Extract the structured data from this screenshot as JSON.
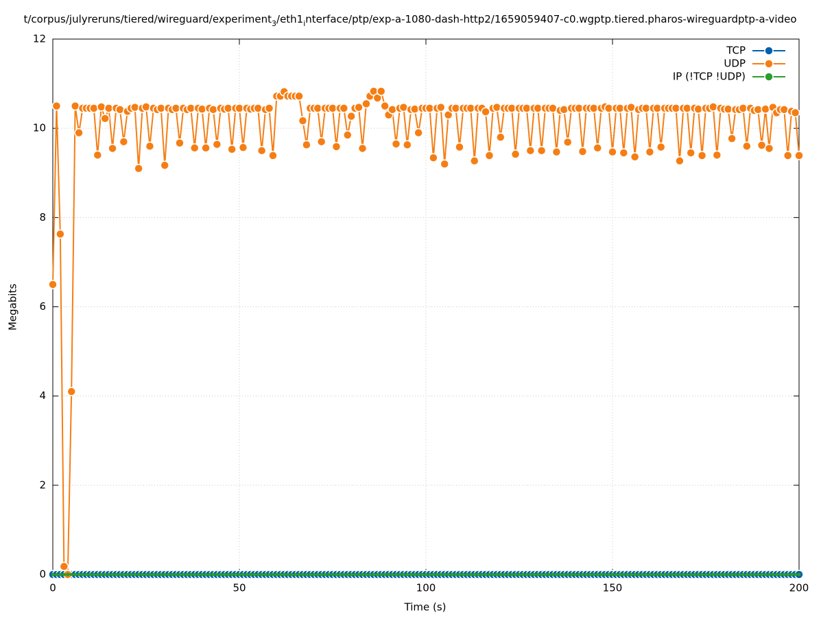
{
  "chart_data": {
    "type": "line",
    "title": [
      {
        "text": "t/corpus/julyreruns/tiered/wireguard/experiment"
      },
      {
        "text": "3",
        "sub": true
      },
      {
        "text": "/eth1"
      },
      {
        "text": "i",
        "sub": true
      },
      {
        "text": "nterface/ptp/exp-a-1080-dash-http2/1659059407-c0.wgptp.tiered.pharos-wireguardptp-a-video"
      }
    ],
    "xlabel": "Time (s)",
    "ylabel": "Megabits",
    "xlim": [
      0,
      200
    ],
    "ylim": [
      0,
      12
    ],
    "xticks": [
      0,
      50,
      100,
      150,
      200
    ],
    "yticks": [
      0,
      2,
      4,
      6,
      8,
      10,
      12
    ],
    "grid": true,
    "legend": "top-right",
    "x": [
      0,
      1,
      2,
      3,
      4,
      5,
      6,
      7,
      8,
      9,
      10,
      11,
      12,
      13,
      14,
      15,
      16,
      17,
      18,
      19,
      20,
      21,
      22,
      23,
      24,
      25,
      26,
      27,
      28,
      29,
      30,
      31,
      32,
      33,
      34,
      35,
      36,
      37,
      38,
      39,
      40,
      41,
      42,
      43,
      44,
      45,
      46,
      47,
      48,
      49,
      50,
      51,
      52,
      53,
      54,
      55,
      56,
      57,
      58,
      59,
      60,
      61,
      62,
      63,
      64,
      65,
      66,
      67,
      68,
      69,
      70,
      71,
      72,
      73,
      74,
      75,
      76,
      77,
      78,
      79,
      80,
      81,
      82,
      83,
      84,
      85,
      86,
      87,
      88,
      89,
      90,
      91,
      92,
      93,
      94,
      95,
      96,
      97,
      98,
      99,
      100,
      101,
      102,
      103,
      104,
      105,
      106,
      107,
      108,
      109,
      110,
      111,
      112,
      113,
      114,
      115,
      116,
      117,
      118,
      119,
      120,
      121,
      122,
      123,
      124,
      125,
      126,
      127,
      128,
      129,
      130,
      131,
      132,
      133,
      134,
      135,
      136,
      137,
      138,
      139,
      140,
      141,
      142,
      143,
      144,
      145,
      146,
      147,
      148,
      149,
      150,
      151,
      152,
      153,
      154,
      155,
      156,
      157,
      158,
      159,
      160,
      161,
      162,
      163,
      164,
      165,
      166,
      167,
      168,
      169,
      170,
      171,
      172,
      173,
      174,
      175,
      176,
      177,
      178,
      179,
      180,
      181,
      182,
      183,
      184,
      185,
      186,
      187,
      188,
      189,
      190,
      191,
      192,
      193,
      194,
      195,
      196,
      197,
      198,
      199,
      200
    ],
    "series": [
      {
        "name": "TCP",
        "color": "#0060ad",
        "values": [
          0,
          0,
          0,
          0,
          0,
          0,
          0,
          0,
          0,
          0,
          0,
          0,
          0,
          0,
          0,
          0,
          0,
          0,
          0,
          0,
          0,
          0,
          0,
          0,
          0,
          0,
          0,
          0,
          0,
          0,
          0,
          0,
          0,
          0,
          0,
          0,
          0,
          0,
          0,
          0,
          0,
          0,
          0,
          0,
          0,
          0,
          0,
          0,
          0,
          0,
          0,
          0,
          0,
          0,
          0,
          0,
          0,
          0,
          0,
          0,
          0,
          0,
          0,
          0,
          0,
          0,
          0,
          0,
          0,
          0,
          0,
          0,
          0,
          0,
          0,
          0,
          0,
          0,
          0,
          0,
          0,
          0,
          0,
          0,
          0,
          0,
          0,
          0,
          0,
          0,
          0,
          0,
          0,
          0,
          0,
          0,
          0,
          0,
          0,
          0,
          0,
          0,
          0,
          0,
          0,
          0,
          0,
          0,
          0,
          0,
          0,
          0,
          0,
          0,
          0,
          0,
          0,
          0,
          0,
          0,
          0,
          0,
          0,
          0,
          0,
          0,
          0,
          0,
          0,
          0,
          0,
          0,
          0,
          0,
          0,
          0,
          0,
          0,
          0,
          0,
          0,
          0,
          0,
          0,
          0,
          0,
          0,
          0,
          0,
          0,
          0,
          0,
          0,
          0,
          0,
          0,
          0,
          0,
          0,
          0,
          0,
          0,
          0,
          0,
          0,
          0,
          0,
          0,
          0,
          0,
          0,
          0,
          0,
          0,
          0,
          0,
          0,
          0,
          0,
          0,
          0,
          0,
          0,
          0,
          0,
          0,
          0,
          0,
          0,
          0,
          0,
          0,
          0,
          0,
          0,
          0,
          0,
          0,
          0,
          0,
          0
        ]
      },
      {
        "name": "UDP",
        "color": "#f57e14",
        "values": [
          6.5,
          10.5,
          7.63,
          0.18,
          0.0,
          4.1,
          10.5,
          9.9,
          10.45,
          10.45,
          10.45,
          10.45,
          9.4,
          10.48,
          10.22,
          10.45,
          9.55,
          10.45,
          10.42,
          9.7,
          10.38,
          10.45,
          10.47,
          9.1,
          10.45,
          10.48,
          9.6,
          10.45,
          10.42,
          10.45,
          9.17,
          10.45,
          10.42,
          10.45,
          9.67,
          10.45,
          10.42,
          10.45,
          9.56,
          10.45,
          10.43,
          9.56,
          10.45,
          10.42,
          9.64,
          10.45,
          10.43,
          10.45,
          9.53,
          10.45,
          10.45,
          9.57,
          10.45,
          10.43,
          10.45,
          10.45,
          9.5,
          10.42,
          10.45,
          9.39,
          10.72,
          10.72,
          10.82,
          10.72,
          10.72,
          10.72,
          10.72,
          10.17,
          9.63,
          10.45,
          10.45,
          10.45,
          9.7,
          10.45,
          10.45,
          10.45,
          9.59,
          10.45,
          10.45,
          9.85,
          10.27,
          10.45,
          10.47,
          9.55,
          10.55,
          10.72,
          10.83,
          10.68,
          10.83,
          10.5,
          10.3,
          10.42,
          9.65,
          10.45,
          10.47,
          9.63,
          10.42,
          10.43,
          9.9,
          10.45,
          10.45,
          10.45,
          9.34,
          10.45,
          10.47,
          9.2,
          10.3,
          10.45,
          10.45,
          9.58,
          10.45,
          10.45,
          10.45,
          9.27,
          10.45,
          10.45,
          10.37,
          9.39,
          10.45,
          10.47,
          9.8,
          10.45,
          10.45,
          10.45,
          9.42,
          10.45,
          10.45,
          10.45,
          9.5,
          10.45,
          10.45,
          9.5,
          10.45,
          10.45,
          10.45,
          9.47,
          10.4,
          10.42,
          9.69,
          10.45,
          10.45,
          10.45,
          9.48,
          10.45,
          10.45,
          10.45,
          9.56,
          10.45,
          10.48,
          10.45,
          9.47,
          10.45,
          10.45,
          9.45,
          10.45,
          10.47,
          9.36,
          10.42,
          10.45,
          10.45,
          9.47,
          10.45,
          10.45,
          9.58,
          10.45,
          10.45,
          10.45,
          10.45,
          9.27,
          10.45,
          10.45,
          9.45,
          10.45,
          10.43,
          9.39,
          10.45,
          10.45,
          10.48,
          9.4,
          10.45,
          10.43,
          10.43,
          9.77,
          10.42,
          10.42,
          10.45,
          9.6,
          10.45,
          10.4,
          10.42,
          9.62,
          10.43,
          9.55,
          10.47,
          10.35,
          10.42,
          10.42,
          9.39,
          10.38,
          10.35,
          9.39
        ]
      },
      {
        "name": "IP (!TCP  !UDP)",
        "color": "#2c9c2c",
        "values": [
          0,
          0,
          0,
          0,
          0,
          0,
          0,
          0,
          0,
          0,
          0,
          0,
          0,
          0,
          0,
          0,
          0,
          0,
          0,
          0,
          0,
          0,
          0,
          0,
          0,
          0,
          0,
          0,
          0,
          0,
          0,
          0,
          0,
          0,
          0,
          0,
          0,
          0,
          0,
          0,
          0,
          0,
          0,
          0,
          0,
          0,
          0,
          0,
          0,
          0,
          0,
          0,
          0,
          0,
          0,
          0,
          0,
          0,
          0,
          0,
          0,
          0,
          0,
          0,
          0,
          0,
          0,
          0,
          0,
          0,
          0,
          0,
          0,
          0,
          0,
          0,
          0,
          0,
          0,
          0,
          0,
          0,
          0,
          0,
          0,
          0,
          0,
          0,
          0,
          0,
          0,
          0,
          0,
          0,
          0,
          0,
          0,
          0,
          0,
          0,
          0,
          0,
          0,
          0,
          0,
          0,
          0,
          0,
          0,
          0,
          0,
          0,
          0,
          0,
          0,
          0,
          0,
          0,
          0,
          0,
          0,
          0,
          0,
          0,
          0,
          0,
          0,
          0,
          0,
          0,
          0,
          0,
          0,
          0,
          0,
          0,
          0,
          0,
          0,
          0,
          0,
          0,
          0,
          0,
          0,
          0,
          0,
          0,
          0,
          0,
          0,
          0,
          0,
          0,
          0,
          0,
          0,
          0,
          0,
          0,
          0,
          0,
          0,
          0,
          0,
          0,
          0,
          0,
          0,
          0,
          0,
          0,
          0,
          0,
          0,
          0,
          0,
          0,
          0,
          0,
          0,
          0,
          0,
          0,
          0,
          0,
          0,
          0,
          0,
          0,
          0,
          0,
          0,
          0,
          0,
          0,
          0,
          0,
          0,
          0,
          0
        ]
      }
    ]
  }
}
